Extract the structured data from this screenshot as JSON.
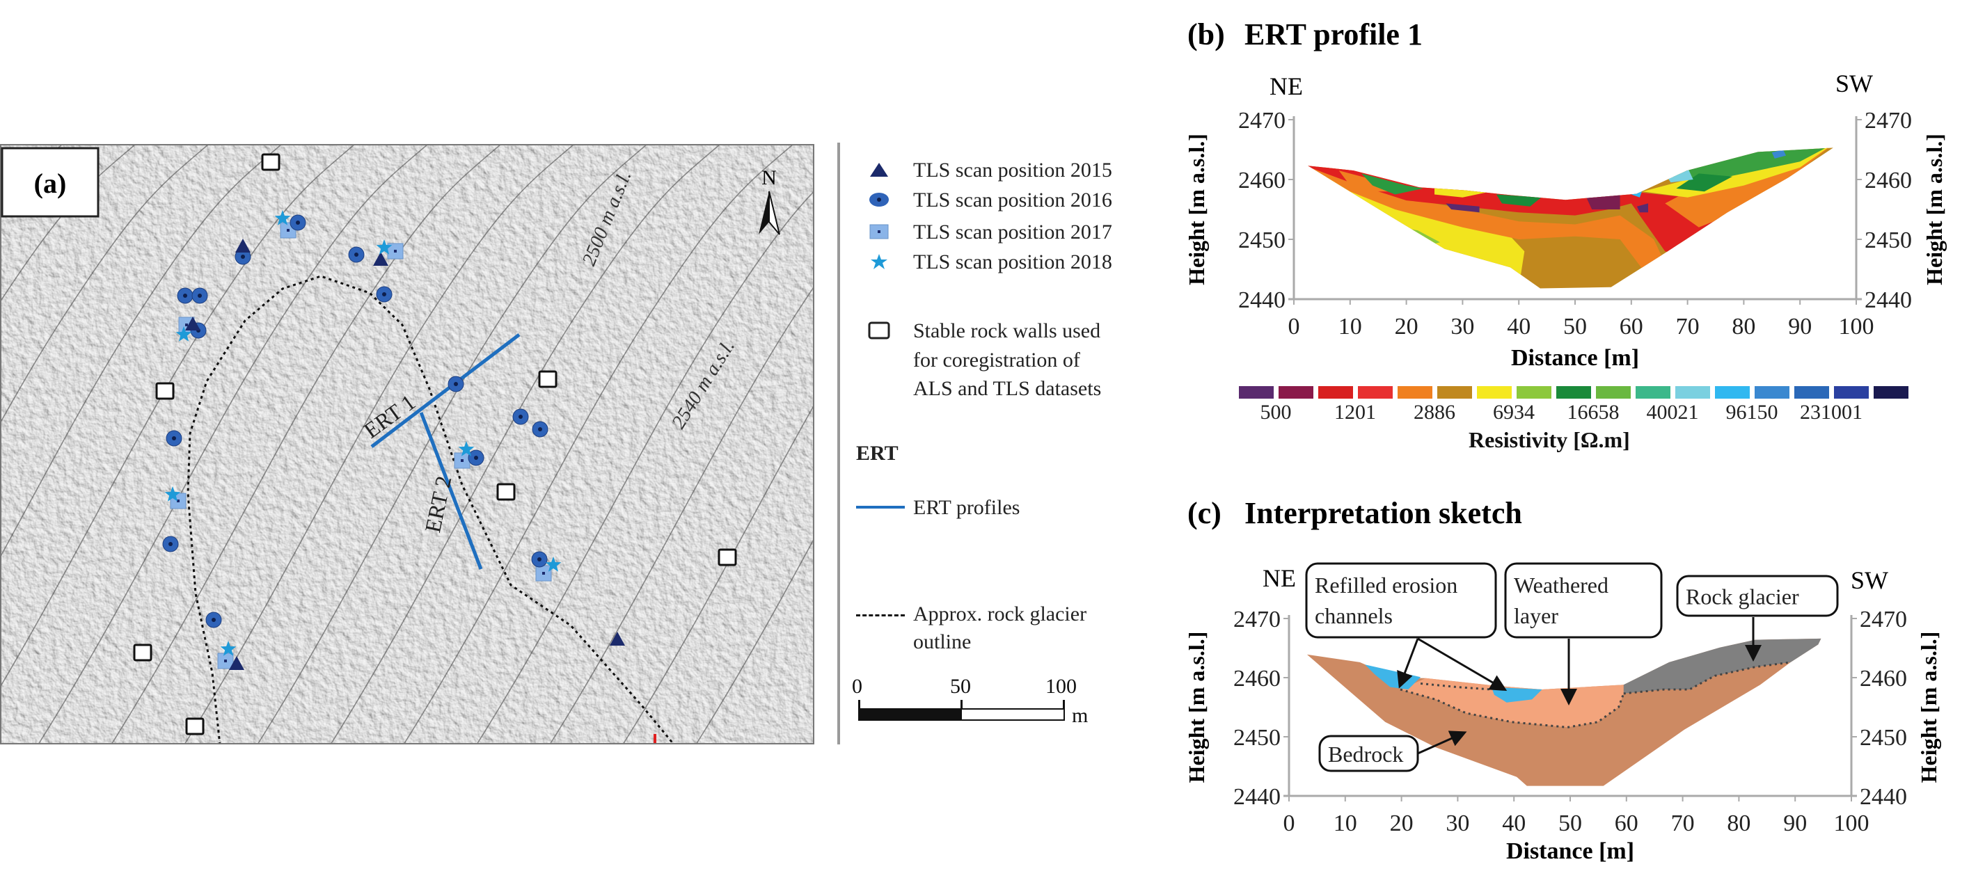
{
  "panel_a": {
    "label": "(a)",
    "north_label": "N",
    "contour_labels": [
      "2500 m a.s.l.",
      "2540 m a.s.l."
    ],
    "ert_labels": [
      "ERT 1",
      "ERT 2"
    ],
    "colors": {
      "tls_2015": "#1b2a6b",
      "tls_2016": "#2f63b8",
      "tls_2017": "#8ab4e8",
      "tls_2018": "#1e9ad8",
      "ert_line": "#1f6fbf"
    },
    "legend": {
      "items": [
        {
          "symbol": "triangle-icon",
          "label": "TLS scan position 2015"
        },
        {
          "symbol": "circle-icon",
          "label": "TLS scan position 2016"
        },
        {
          "symbol": "square-icon",
          "label": "TLS scan position 2017"
        },
        {
          "symbol": "star-icon",
          "label": "TLS scan position 2018"
        }
      ],
      "stable_walls": [
        "Stable rock walls used",
        "for coregistration of",
        "ALS and TLS datasets"
      ],
      "ert_heading": "ERT",
      "ert_profiles": "ERT profiles",
      "outline": [
        "Approx. rock glacier",
        "outline"
      ],
      "scale": {
        "ticks": [
          "0",
          "50",
          "100"
        ],
        "unit": "m"
      }
    }
  },
  "chart_data": [
    {
      "type": "heatmap",
      "panel_label": "(b)",
      "title": "ERT profile 1",
      "direction_labels": {
        "left": "NE",
        "right": "SW"
      },
      "xlabel": "Distance  [m]",
      "ylabel": "Height  [m a.s.l.]",
      "xlim": [
        0,
        100
      ],
      "ylim": [
        2440,
        2470
      ],
      "xticks": [
        "0",
        "10",
        "20",
        "30",
        "40",
        "50",
        "60",
        "70",
        "80",
        "90",
        "100"
      ],
      "yticks": [
        "2440",
        "2450",
        "2460",
        "2470"
      ],
      "grid": false,
      "outline": [
        [
          2.5,
          2462.3
        ],
        [
          10.6,
          2461.5
        ],
        [
          22.3,
          2458.7
        ],
        [
          30.4,
          2458.2
        ],
        [
          38.5,
          2457.4
        ],
        [
          48.3,
          2456.6
        ],
        [
          60.9,
          2457.6
        ],
        [
          69.9,
          2461.5
        ],
        [
          82.5,
          2464.6
        ],
        [
          95.9,
          2465.3
        ],
        [
          87.9,
          2460.3
        ],
        [
          77.1,
          2454.5
        ],
        [
          66.3,
          2447.9
        ],
        [
          56.4,
          2442
        ],
        [
          43.8,
          2441.8
        ],
        [
          38.5,
          2445.3
        ],
        [
          26.8,
          2448.4
        ],
        [
          16,
          2454.5
        ]
      ],
      "regions": [
        {
          "color": "#c0881e",
          "polygon": [
            [
              0,
              2440
            ],
            [
              100,
              2440
            ],
            [
              100,
              2470
            ],
            [
              0,
              2470
            ]
          ]
        },
        {
          "color": "#f2e41e",
          "polygon": [
            [
              0,
              2462
            ],
            [
              20,
              2457
            ],
            [
              30,
              2454
            ],
            [
              37,
              2452
            ],
            [
              41,
              2448
            ],
            [
              40,
              2442
            ],
            [
              30,
              2446
            ],
            [
              15,
              2452
            ]
          ]
        },
        {
          "color": "#8cc83c",
          "polygon": [
            [
              16,
              2452.5
            ],
            [
              22,
              2451.5
            ],
            [
              26,
              2449.5
            ],
            [
              22,
              2448.5
            ],
            [
              17,
              2450.5
            ]
          ]
        },
        {
          "color": "#f08020",
          "polygon": [
            [
              3,
              2462
            ],
            [
              12,
              2462
            ],
            [
              25,
              2456
            ],
            [
              40,
              2453
            ],
            [
              50,
              2452.5
            ],
            [
              58,
              2454
            ],
            [
              64,
              2450
            ],
            [
              66,
              2446
            ],
            [
              62,
              2445
            ],
            [
              58,
              2450
            ],
            [
              50,
              2450.5
            ],
            [
              40,
              2450
            ],
            [
              30,
              2452
            ],
            [
              18,
              2455
            ],
            [
              10,
              2458
            ]
          ]
        },
        {
          "color": "#e02020",
          "polygon": [
            [
              0,
              2463
            ],
            [
              10,
              2459.5
            ],
            [
              20,
              2456.5
            ],
            [
              30,
              2455.5
            ],
            [
              40,
              2454.5
            ],
            [
              50,
              2454
            ],
            [
              56,
              2455
            ],
            [
              60,
              2456
            ],
            [
              63,
              2452
            ],
            [
              66,
              2448
            ],
            [
              70,
              2447
            ],
            [
              77,
              2453
            ],
            [
              70,
              2457
            ],
            [
              60,
              2458
            ],
            [
              30,
              2459
            ]
          ]
        },
        {
          "color": "#f08020",
          "polygon": [
            [
              66,
              2456
            ],
            [
              72,
              2452
            ],
            [
              80,
              2455
            ],
            [
              88,
              2460
            ],
            [
              96,
              2466
            ],
            [
              80,
              2461
            ],
            [
              70,
              2458
            ]
          ]
        },
        {
          "color": "#f08020",
          "polygon": [
            [
              8,
              2461.5
            ],
            [
              14,
              2460
            ],
            [
              20,
              2458
            ],
            [
              14,
              2458
            ],
            [
              10,
              2459
            ]
          ]
        },
        {
          "color": "#f2e41e",
          "polygon": [
            [
              62,
              2458
            ],
            [
              70,
              2457
            ],
            [
              80,
              2459
            ],
            [
              90,
              2462
            ],
            [
              96,
              2466
            ],
            [
              82,
              2463
            ],
            [
              70,
              2460
            ]
          ]
        },
        {
          "color": "#3aa040",
          "polygon": [
            [
              60,
              2459
            ],
            [
              65,
              2461
            ],
            [
              72,
              2459.5
            ],
            [
              80,
              2461
            ],
            [
              90,
              2463
            ],
            [
              96,
              2466
            ],
            [
              82,
              2465
            ],
            [
              70,
              2463
            ]
          ]
        },
        {
          "color": "#1a8a3a",
          "polygon": [
            [
              68,
              2458.5
            ],
            [
              73,
              2458
            ],
            [
              78,
              2460.5
            ],
            [
              72,
              2461
            ]
          ]
        },
        {
          "color": "#7ad0e0",
          "polygon": [
            [
              66,
              2461
            ],
            [
              70,
              2462
            ],
            [
              71,
              2460
            ],
            [
              67,
              2459.5
            ]
          ]
        },
        {
          "color": "#3a88d0",
          "polygon": [
            [
              85,
              2464.5
            ],
            [
              87,
              2465
            ],
            [
              87.5,
              2464
            ],
            [
              85.5,
              2463.5
            ]
          ]
        },
        {
          "color": "#30b8f0",
          "polygon": [
            [
              60,
              2457.5
            ],
            [
              62,
              2458.3
            ],
            [
              61.5,
              2457
            ]
          ]
        },
        {
          "color": "#2a9a40",
          "polygon": [
            [
              12,
              2461
            ],
            [
              20,
              2459
            ],
            [
              23,
              2458.5
            ],
            [
              18,
              2457.5
            ],
            [
              14,
              2459
            ]
          ]
        },
        {
          "color": "#1a8a3a",
          "polygon": [
            [
              36,
              2457.5
            ],
            [
              44,
              2457
            ],
            [
              42,
              2455.5
            ],
            [
              37,
              2456
            ]
          ]
        },
        {
          "color": "#f2e41e",
          "polygon": [
            [
              25,
              2458.7
            ],
            [
              35,
              2458
            ],
            [
              30,
              2457
            ],
            [
              25,
              2457.5
            ]
          ]
        },
        {
          "color": "#5a2a6e",
          "polygon": [
            [
              27,
              2456
            ],
            [
              33,
              2455.5
            ],
            [
              33,
              2454.5
            ],
            [
              28,
              2455
            ]
          ]
        },
        {
          "color": "#7a1e50",
          "polygon": [
            [
              52,
              2457
            ],
            [
              58,
              2457.5
            ],
            [
              58,
              2455
            ],
            [
              53,
              2455
            ]
          ]
        },
        {
          "color": "#5a2a6e",
          "polygon": [
            [
              61,
              2455.5
            ],
            [
              63,
              2456
            ],
            [
              63,
              2454.5
            ],
            [
              61.5,
              2454.5
            ]
          ]
        }
      ],
      "colorbar": {
        "label": "Resistivity [Ω.m]",
        "colors": [
          "#5a2a6e",
          "#8a1a4a",
          "#d82020",
          "#e83030",
          "#f08020",
          "#c0881e",
          "#f5e820",
          "#8cc83c",
          "#1a8a3a",
          "#6ab840",
          "#3cb88a",
          "#7ad0e0",
          "#30b8f0",
          "#3a88d0",
          "#2a68b8",
          "#2a40a0",
          "#1a1a50"
        ],
        "tick_labels": [
          "500",
          "1201",
          "2886",
          "6934",
          "16658",
          "40021",
          "96150",
          "231001"
        ]
      }
    },
    {
      "type": "area",
      "panel_label": "(c)",
      "title": "Interpretation sketch",
      "direction_labels": {
        "left": "NE",
        "right": "SW"
      },
      "xlabel": "Distance  [m]",
      "ylabel": "Height  [m a.s.l.]",
      "xlim": [
        0,
        100
      ],
      "ylim": [
        2440,
        2470
      ],
      "xticks": [
        "0",
        "10",
        "20",
        "30",
        "40",
        "50",
        "60",
        "70",
        "80",
        "90",
        "100"
      ],
      "yticks": [
        "2440",
        "2450",
        "2460",
        "2470"
      ],
      "grid": false,
      "layers": [
        {
          "name": "Bedrock",
          "color": "#cd8a63",
          "polygon": [
            [
              3.2,
              2463.9
            ],
            [
              12.6,
              2462.6
            ],
            [
              18.9,
              2460
            ],
            [
              24.3,
              2459.9
            ],
            [
              37,
              2458.6
            ],
            [
              45,
              2458
            ],
            [
              59.5,
              2458.8
            ],
            [
              67.6,
              2462.6
            ],
            [
              76.6,
              2465.1
            ],
            [
              82.9,
              2466.4
            ],
            [
              94.6,
              2466.6
            ],
            [
              94.1,
              2465.6
            ],
            [
              89.2,
              2462.6
            ],
            [
              83.8,
              2458.8
            ],
            [
              70.3,
              2451.2
            ],
            [
              55.9,
              2441.7
            ],
            [
              42.3,
              2441.7
            ],
            [
              40.5,
              2443.2
            ],
            [
              26.1,
              2448.2
            ],
            [
              17.1,
              2452.5
            ]
          ]
        },
        {
          "name": "Weathered layer",
          "color": "#f3a47c",
          "polygon": [
            [
              19.8,
              2458
            ],
            [
              24.3,
              2459.9
            ],
            [
              37,
              2458.6
            ],
            [
              45,
              2458
            ],
            [
              59.5,
              2458.8
            ],
            [
              59.5,
              2457.3
            ],
            [
              58.6,
              2455
            ],
            [
              54.9,
              2452.5
            ],
            [
              49.5,
              2451.6
            ],
            [
              39.6,
              2452.5
            ],
            [
              31.5,
              2454
            ],
            [
              26.1,
              2456.3
            ]
          ]
        },
        {
          "name": "Rock glacier",
          "color": "#808080",
          "polygon": [
            [
              59.5,
              2458.8
            ],
            [
              67.6,
              2462.6
            ],
            [
              76.6,
              2465.1
            ],
            [
              82.9,
              2466.4
            ],
            [
              94.6,
              2466.6
            ],
            [
              94.1,
              2465.6
            ],
            [
              89.2,
              2462.6
            ],
            [
              82.9,
              2461.8
            ],
            [
              75.7,
              2460.3
            ],
            [
              71.2,
              2458
            ],
            [
              66.7,
              2458
            ],
            [
              59.5,
              2457.3
            ]
          ]
        },
        {
          "name": "Refilled erosion channel 1",
          "color": "#3fb5e8",
          "polygon": [
            [
              13.5,
              2462.2
            ],
            [
              23.4,
              2460.1
            ],
            [
              21.2,
              2458
            ],
            [
              18,
              2458.4
            ],
            [
              15.3,
              2460.5
            ]
          ]
        },
        {
          "name": "Refilled erosion channel 2",
          "color": "#3fb5e8",
          "polygon": [
            [
              36,
              2458.4
            ],
            [
              45,
              2458
            ],
            [
              43.2,
              2456.3
            ],
            [
              38.7,
              2455.8
            ],
            [
              36.5,
              2457.1
            ]
          ]
        }
      ],
      "boundaries_dotted": [
        [
          [
            19.8,
            2458
          ],
          [
            26.1,
            2456.3
          ],
          [
            31.5,
            2454
          ],
          [
            39.6,
            2452.5
          ],
          [
            49.5,
            2451.6
          ],
          [
            54.9,
            2452.5
          ],
          [
            58.6,
            2455
          ],
          [
            59.5,
            2457.3
          ]
        ],
        [
          [
            23.4,
            2459
          ],
          [
            30,
            2458.4
          ],
          [
            36,
            2458
          ]
        ],
        [
          [
            59.5,
            2457.3
          ],
          [
            66.7,
            2458
          ],
          [
            71.2,
            2458
          ],
          [
            75.7,
            2460.3
          ],
          [
            82.9,
            2461.8
          ],
          [
            89.2,
            2462.6
          ]
        ]
      ],
      "annotations": [
        {
          "lines": [
            "Refilled erosion",
            "channels"
          ]
        },
        {
          "lines": [
            "Weathered",
            "layer"
          ]
        },
        {
          "lines": [
            "Rock glacier"
          ]
        },
        {
          "lines": [
            "Bedrock"
          ]
        }
      ]
    }
  ]
}
